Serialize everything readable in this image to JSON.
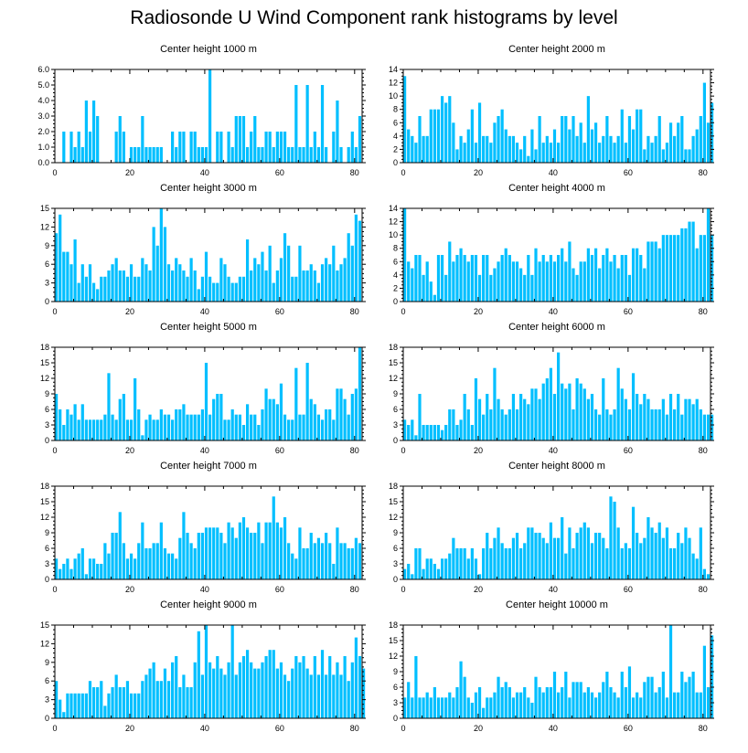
{
  "title": "Radiosonde U Wind Component rank histograms by level",
  "colors": {
    "bar": "#00BFFF",
    "axis": "#000000"
  },
  "chart_data": [
    {
      "type": "bar",
      "title": "Center height 1000 m",
      "xlim": [
        0,
        82
      ],
      "ylim": [
        0,
        6
      ],
      "xticks": [
        0,
        20,
        40,
        60,
        80
      ],
      "yticks": [
        0,
        1,
        2,
        3,
        4,
        5,
        6
      ],
      "yticklabels": [
        "0.0",
        "1.0",
        "2.0",
        "3.0",
        "4.0",
        "5.0",
        "6.0"
      ],
      "values": [
        0,
        0,
        2,
        0,
        2,
        1,
        2,
        1,
        4,
        2,
        4,
        3,
        0,
        0,
        0,
        0,
        2,
        3,
        2,
        0,
        1,
        1,
        1,
        3,
        1,
        1,
        1,
        1,
        1,
        0,
        0,
        2,
        1,
        2,
        2,
        0,
        2,
        2,
        1,
        1,
        1,
        6,
        0,
        2,
        2,
        0,
        2,
        1,
        3,
        3,
        3,
        1,
        2,
        3,
        1,
        1,
        2,
        2,
        1,
        2,
        2,
        2,
        1,
        1,
        5,
        1,
        1,
        5,
        1,
        2,
        1,
        5,
        1,
        0,
        2,
        4,
        1,
        0,
        1,
        2,
        1,
        3
      ]
    },
    {
      "type": "bar",
      "title": "Center height 2000 m",
      "xlim": [
        0,
        82
      ],
      "ylim": [
        0,
        14
      ],
      "xticks": [
        0,
        20,
        40,
        60,
        80
      ],
      "yticks": [
        0,
        2,
        4,
        6,
        8,
        10,
        12,
        14
      ],
      "yticklabels": [
        "0",
        "2",
        "4",
        "6",
        "8",
        "10",
        "12",
        "14"
      ],
      "values": [
        13,
        5,
        4,
        3,
        7,
        4,
        4,
        8,
        8,
        8,
        10,
        9,
        10,
        6,
        2,
        4,
        3,
        5,
        8,
        3,
        9,
        4,
        4,
        3,
        6,
        7,
        8,
        5,
        4,
        4,
        3,
        2,
        4,
        1,
        5,
        2,
        7,
        3,
        4,
        3,
        5,
        3,
        7,
        7,
        5,
        7,
        4,
        6,
        3,
        10,
        5,
        6,
        3,
        4,
        7,
        4,
        3,
        4,
        8,
        3,
        7,
        5,
        8,
        8,
        2,
        4,
        3,
        4,
        7,
        2,
        3,
        6,
        4,
        6,
        7,
        2,
        2,
        4,
        5,
        7,
        12,
        6,
        9
      ]
    },
    {
      "type": "bar",
      "title": "Center height 3000 m",
      "xlim": [
        0,
        82
      ],
      "ylim": [
        0,
        15
      ],
      "xticks": [
        0,
        20,
        40,
        60,
        80
      ],
      "yticks": [
        0,
        3,
        6,
        9,
        12,
        15
      ],
      "yticklabels": [
        "0",
        "3",
        "6",
        "9",
        "12",
        "15"
      ],
      "values": [
        11,
        14,
        8,
        8,
        6,
        10,
        3,
        6,
        4,
        6,
        3,
        2,
        4,
        4,
        5,
        6,
        7,
        5,
        5,
        4,
        6,
        4,
        4,
        7,
        6,
        5,
        12,
        9,
        15,
        12,
        6,
        5,
        7,
        6,
        5,
        4,
        7,
        5,
        2,
        4,
        8,
        4,
        3,
        3,
        7,
        6,
        4,
        3,
        3,
        4,
        4,
        10,
        5,
        7,
        6,
        8,
        5,
        9,
        3,
        5,
        7,
        11,
        9,
        4,
        4,
        9,
        5,
        5,
        6,
        5,
        3,
        6,
        7,
        6,
        9,
        5,
        6,
        7,
        11,
        9,
        14,
        13
      ]
    },
    {
      "type": "bar",
      "title": "Center height 4000 m",
      "xlim": [
        0,
        82
      ],
      "ylim": [
        0,
        14
      ],
      "xticks": [
        0,
        20,
        40,
        60,
        80
      ],
      "yticks": [
        0,
        2,
        4,
        6,
        8,
        10,
        12,
        14
      ],
      "yticklabels": [
        "0",
        "2",
        "4",
        "6",
        "8",
        "10",
        "12",
        "14"
      ],
      "values": [
        14,
        6,
        5,
        7,
        7,
        4,
        6,
        3,
        1,
        7,
        7,
        4,
        9,
        6,
        7,
        8,
        7,
        6,
        7,
        7,
        4,
        7,
        7,
        4,
        5,
        6,
        7,
        8,
        7,
        6,
        6,
        5,
        4,
        7,
        4,
        8,
        6,
        7,
        6,
        7,
        6,
        7,
        8,
        6,
        9,
        5,
        4,
        6,
        6,
        8,
        7,
        8,
        5,
        7,
        8,
        6,
        7,
        5,
        7,
        7,
        4,
        8,
        8,
        7,
        5,
        9,
        9,
        9,
        8,
        10,
        10,
        10,
        10,
        10,
        11,
        11,
        12,
        12,
        8,
        10,
        10,
        14,
        10
      ]
    },
    {
      "type": "bar",
      "title": "Center height 5000 m",
      "xlim": [
        0,
        82
      ],
      "ylim": [
        0,
        18
      ],
      "xticks": [
        0,
        20,
        40,
        60,
        80
      ],
      "yticks": [
        0,
        3,
        6,
        9,
        12,
        15,
        18
      ],
      "yticklabels": [
        "0",
        "3",
        "6",
        "9",
        "12",
        "15",
        "18"
      ],
      "values": [
        9,
        6,
        3,
        6,
        5,
        7,
        4,
        7,
        4,
        4,
        4,
        4,
        4,
        5,
        13,
        5,
        4,
        8,
        9,
        4,
        4,
        12,
        6,
        1,
        4,
        5,
        4,
        4,
        6,
        5,
        5,
        4,
        6,
        6,
        7,
        5,
        5,
        5,
        5,
        6,
        15,
        5,
        8,
        9,
        9,
        4,
        4,
        6,
        5,
        5,
        3,
        7,
        5,
        5,
        3,
        6,
        10,
        8,
        8,
        7,
        11,
        5,
        4,
        4,
        14,
        5,
        5,
        15,
        8,
        7,
        5,
        4,
        6,
        6,
        4,
        10,
        10,
        8,
        5,
        9,
        10,
        18
      ]
    },
    {
      "type": "bar",
      "title": "Center height 6000 m",
      "xlim": [
        0,
        82
      ],
      "ylim": [
        0,
        18
      ],
      "xticks": [
        0,
        20,
        40,
        60,
        80
      ],
      "yticks": [
        0,
        3,
        6,
        9,
        12,
        15,
        18
      ],
      "yticklabels": [
        "0",
        "3",
        "6",
        "9",
        "12",
        "15",
        "18"
      ],
      "values": [
        4,
        3,
        4,
        1,
        9,
        3,
        3,
        3,
        3,
        3,
        2,
        3,
        6,
        6,
        3,
        4,
        9,
        6,
        3,
        12,
        8,
        5,
        9,
        6,
        14,
        8,
        6,
        5,
        6,
        9,
        6,
        9,
        8,
        7,
        10,
        10,
        8,
        11,
        12,
        14,
        9,
        17,
        11,
        10,
        11,
        6,
        12,
        11,
        10,
        8,
        9,
        6,
        5,
        12,
        6,
        5,
        6,
        14,
        10,
        8,
        6,
        13,
        9,
        7,
        9,
        8,
        6,
        6,
        6,
        8,
        5,
        9,
        6,
        9,
        5,
        8,
        8,
        7,
        8,
        6,
        5,
        5,
        5
      ]
    },
    {
      "type": "bar",
      "title": "Center height 7000 m",
      "xlim": [
        0,
        82
      ],
      "ylim": [
        0,
        18
      ],
      "xticks": [
        0,
        20,
        40,
        60,
        80
      ],
      "yticks": [
        0,
        3,
        6,
        9,
        12,
        15,
        18
      ],
      "yticklabels": [
        "0",
        "3",
        "6",
        "9",
        "12",
        "15",
        "18"
      ],
      "values": [
        4,
        2,
        3,
        4,
        2,
        4,
        5,
        6,
        1,
        4,
        4,
        3,
        3,
        7,
        5,
        9,
        9,
        13,
        7,
        4,
        5,
        4,
        7,
        11,
        6,
        6,
        7,
        7,
        11,
        6,
        5,
        5,
        4,
        8,
        13,
        9,
        7,
        6,
        9,
        9,
        10,
        10,
        10,
        10,
        9,
        7,
        11,
        10,
        8,
        11,
        12,
        10,
        9,
        9,
        11,
        7,
        11,
        11,
        16,
        11,
        10,
        12,
        7,
        5,
        4,
        10,
        6,
        6,
        9,
        7,
        8,
        7,
        9,
        7,
        3,
        10,
        7,
        7,
        6,
        6,
        8,
        7
      ]
    },
    {
      "type": "bar",
      "title": "Center height 8000 m",
      "xlim": [
        0,
        82
      ],
      "ylim": [
        0,
        18
      ],
      "xticks": [
        0,
        20,
        40,
        60,
        80
      ],
      "yticks": [
        0,
        3,
        6,
        9,
        12,
        15,
        18
      ],
      "yticklabels": [
        "0",
        "3",
        "6",
        "9",
        "12",
        "15",
        "18"
      ],
      "values": [
        2,
        3,
        1,
        6,
        6,
        2,
        4,
        4,
        3,
        2,
        4,
        4,
        5,
        8,
        6,
        6,
        6,
        4,
        6,
        4,
        1,
        6,
        9,
        6,
        8,
        10,
        7,
        6,
        6,
        8,
        9,
        6,
        7,
        10,
        10,
        9,
        9,
        8,
        7,
        11,
        8,
        8,
        12,
        5,
        10,
        6,
        9,
        10,
        11,
        10,
        7,
        9,
        9,
        8,
        6,
        16,
        15,
        10,
        6,
        7,
        6,
        14,
        9,
        7,
        8,
        12,
        10,
        9,
        11,
        8,
        10,
        6,
        6,
        9,
        7,
        10,
        8,
        5,
        4,
        10,
        2,
        1
      ]
    },
    {
      "type": "bar",
      "title": "Center height 9000 m",
      "xlim": [
        0,
        82
      ],
      "ylim": [
        0,
        15
      ],
      "xticks": [
        0,
        20,
        40,
        60,
        80
      ],
      "yticks": [
        0,
        3,
        6,
        9,
        12,
        15
      ],
      "yticklabels": [
        "0",
        "3",
        "6",
        "9",
        "12",
        "15"
      ],
      "values": [
        6,
        3,
        1,
        4,
        4,
        4,
        4,
        4,
        4,
        6,
        5,
        5,
        6,
        2,
        4,
        5,
        7,
        5,
        5,
        6,
        4,
        4,
        4,
        6,
        7,
        8,
        9,
        6,
        6,
        8,
        6,
        9,
        10,
        5,
        7,
        5,
        5,
        9,
        14,
        7,
        15,
        9,
        8,
        10,
        8,
        7,
        9,
        15,
        7,
        9,
        10,
        11,
        9,
        8,
        8,
        9,
        10,
        11,
        11,
        8,
        9,
        7,
        6,
        8,
        10,
        9,
        10,
        8,
        7,
        10,
        7,
        11,
        7,
        10,
        7,
        9,
        7,
        10,
        6,
        9,
        13,
        10,
        8
      ]
    },
    {
      "type": "bar",
      "title": "Center height 10000 m",
      "xlim": [
        0,
        82
      ],
      "ylim": [
        0,
        18
      ],
      "xticks": [
        0,
        20,
        40,
        60,
        80
      ],
      "yticks": [
        0,
        3,
        6,
        9,
        12,
        15,
        18
      ],
      "yticklabels": [
        "0",
        "3",
        "6",
        "9",
        "12",
        "15",
        "18"
      ],
      "values": [
        4,
        7,
        4,
        12,
        4,
        4,
        5,
        4,
        6,
        4,
        4,
        4,
        5,
        4,
        6,
        11,
        8,
        4,
        3,
        5,
        6,
        2,
        4,
        4,
        5,
        8,
        6,
        7,
        6,
        4,
        5,
        5,
        6,
        4,
        3,
        8,
        6,
        5,
        6,
        6,
        9,
        5,
        6,
        9,
        4,
        7,
        7,
        7,
        5,
        6,
        5,
        4,
        5,
        7,
        9,
        6,
        5,
        4,
        9,
        6,
        10,
        4,
        5,
        4,
        7,
        8,
        8,
        5,
        6,
        9,
        4,
        18,
        5,
        5,
        9,
        7,
        8,
        9,
        5,
        5,
        14,
        6,
        16
      ]
    }
  ]
}
